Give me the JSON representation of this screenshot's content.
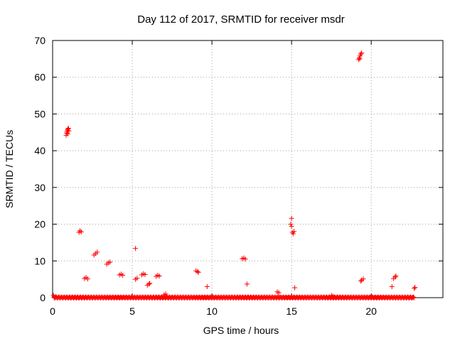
{
  "chart_data": {
    "type": "scatter",
    "title": "Day 112 of 2017, SRMTID for receiver msdr",
    "xlabel": "GPS time / hours",
    "ylabel": "SRMTID / TECUs",
    "xlim": [
      0,
      24.5
    ],
    "ylim": [
      0,
      70
    ],
    "xticks": [
      0,
      5,
      10,
      15,
      20
    ],
    "yticks": [
      0,
      10,
      20,
      30,
      40,
      50,
      60,
      70
    ],
    "xtick_labels": [
      "0",
      "5",
      "10",
      "15",
      "20"
    ],
    "ytick_labels": [
      "0",
      "10",
      "20",
      "30",
      "40",
      "50",
      "60",
      "70"
    ],
    "grid": true,
    "marker": "+",
    "color": "#ff0000",
    "baseline": {
      "description_value": 0,
      "x_start": 0.1,
      "x_end": 22.7
    },
    "points": [
      [
        0.05,
        0.6
      ],
      [
        0.1,
        0.2
      ],
      [
        0.2,
        0.3
      ],
      [
        0.85,
        44.2
      ],
      [
        0.88,
        44.8
      ],
      [
        0.9,
        45.2
      ],
      [
        0.93,
        45.6
      ],
      [
        0.96,
        45.9
      ],
      [
        1.0,
        46.1
      ],
      [
        1.02,
        45.4
      ],
      [
        0.95,
        44.6
      ],
      [
        1.65,
        17.8
      ],
      [
        1.72,
        18.2
      ],
      [
        1.8,
        17.9
      ],
      [
        2.0,
        5.2
      ],
      [
        2.1,
        5.5
      ],
      [
        2.2,
        5.1
      ],
      [
        2.6,
        11.6
      ],
      [
        2.7,
        12.0
      ],
      [
        2.8,
        12.4
      ],
      [
        3.4,
        9.1
      ],
      [
        3.5,
        9.5
      ],
      [
        3.6,
        9.7
      ],
      [
        4.2,
        6.2
      ],
      [
        4.3,
        6.4
      ],
      [
        4.4,
        6.1
      ],
      [
        5.2,
        13.4
      ],
      [
        5.2,
        5.0
      ],
      [
        5.3,
        5.3
      ],
      [
        5.6,
        6.2
      ],
      [
        5.7,
        6.5
      ],
      [
        5.8,
        6.3
      ],
      [
        5.95,
        3.4
      ],
      [
        6.05,
        3.7
      ],
      [
        6.1,
        3.9
      ],
      [
        6.5,
        5.8
      ],
      [
        6.6,
        6.1
      ],
      [
        6.7,
        5.9
      ],
      [
        7.0,
        0.8
      ],
      [
        7.1,
        1.0
      ],
      [
        9.0,
        7.3
      ],
      [
        9.1,
        7.1
      ],
      [
        9.15,
        6.9
      ],
      [
        9.7,
        3.0
      ],
      [
        11.9,
        10.6
      ],
      [
        12.0,
        10.8
      ],
      [
        12.1,
        10.5
      ],
      [
        12.2,
        3.7
      ],
      [
        14.1,
        1.6
      ],
      [
        14.2,
        1.3
      ],
      [
        15.0,
        21.6
      ],
      [
        15.0,
        19.4
      ],
      [
        14.95,
        20.0
      ],
      [
        15.05,
        17.8
      ],
      [
        15.1,
        17.4
      ],
      [
        15.15,
        18.0
      ],
      [
        15.2,
        2.7
      ],
      [
        17.5,
        0.6
      ],
      [
        17.6,
        0.4
      ],
      [
        19.2,
        64.8
      ],
      [
        19.25,
        65.3
      ],
      [
        19.3,
        65.8
      ],
      [
        19.35,
        66.3
      ],
      [
        19.4,
        66.6
      ],
      [
        19.28,
        65.0
      ],
      [
        19.35,
        4.5
      ],
      [
        19.4,
        4.8
      ],
      [
        19.5,
        5.1
      ],
      [
        21.3,
        3.0
      ],
      [
        21.4,
        5.2
      ],
      [
        21.5,
        5.6
      ],
      [
        21.55,
        5.9
      ],
      [
        22.7,
        2.5
      ],
      [
        22.75,
        2.8
      ]
    ]
  }
}
